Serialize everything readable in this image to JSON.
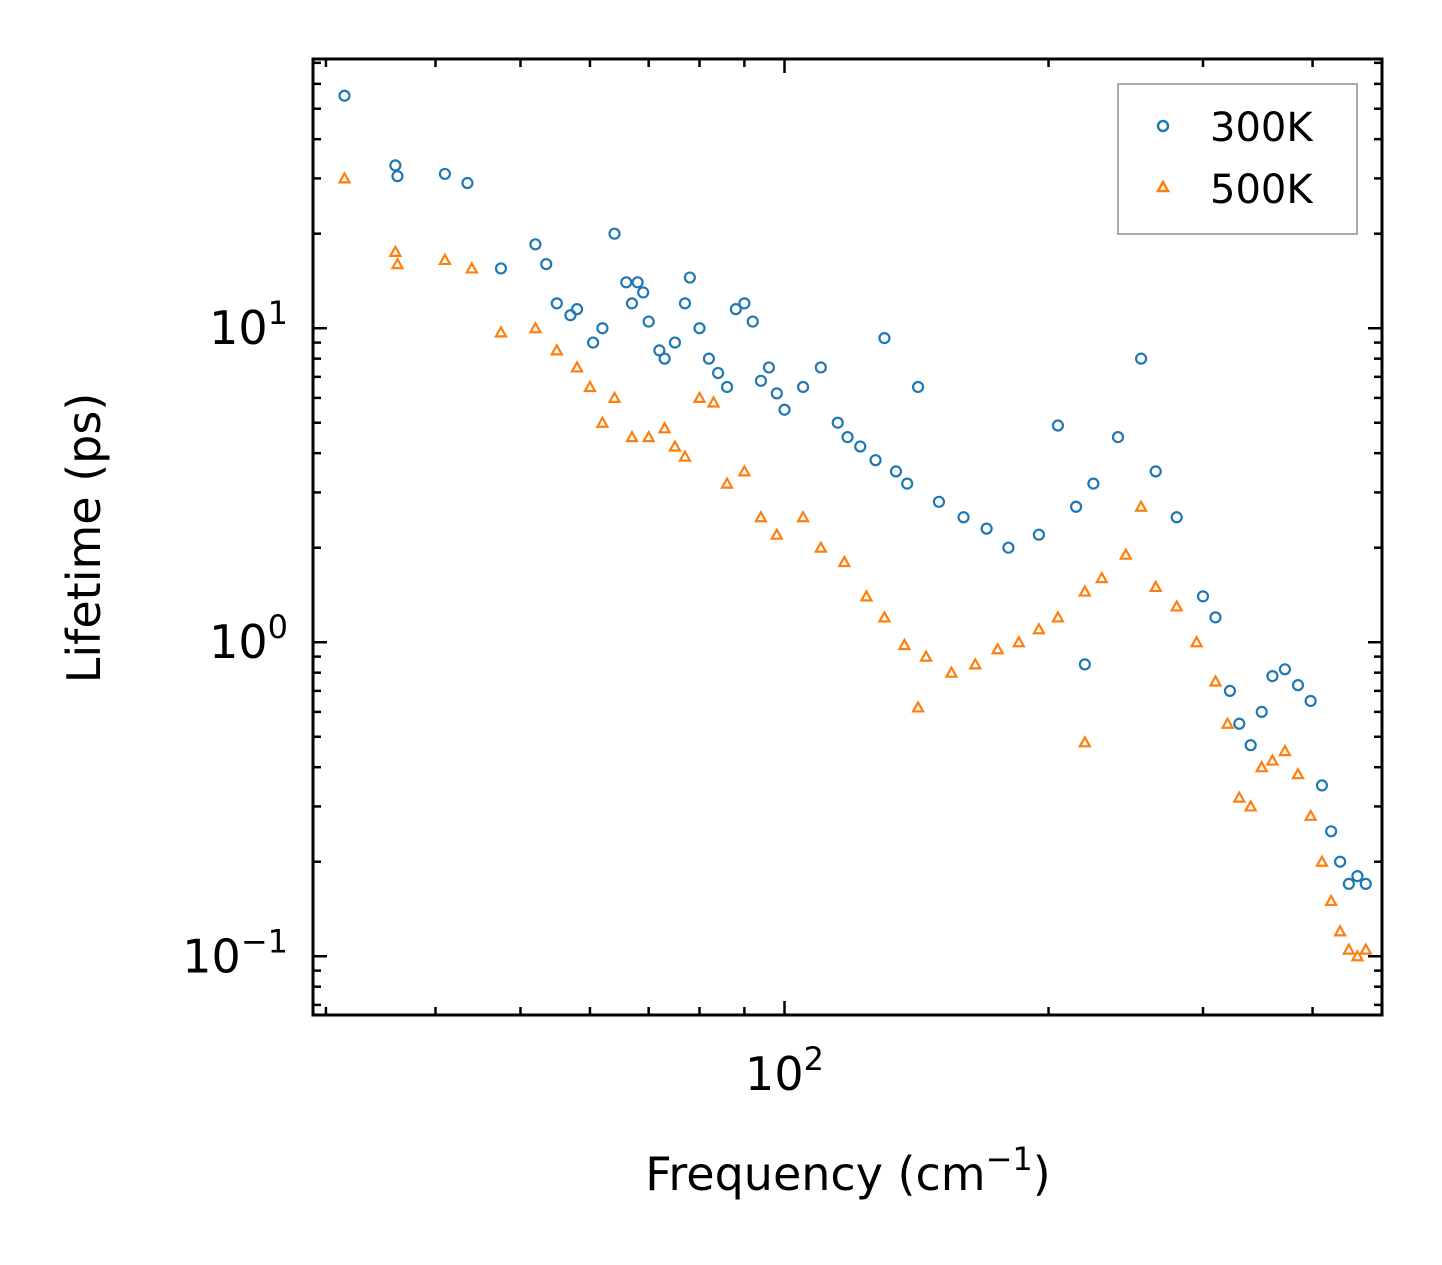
{
  "chart_data": {
    "type": "scatter",
    "xscale": "log",
    "yscale": "log",
    "xlabel": "Frequency (cm",
    "xlabel_exp": "−1",
    "xlabel_close": ")",
    "ylabel": "Lifetime (ps)",
    "xlim": [
      29,
      480
    ],
    "ylim": [
      0.065,
      72
    ],
    "x_ticks": [
      {
        "base": "10",
        "exp": "2",
        "value": 100
      }
    ],
    "y_ticks": [
      {
        "base": "10",
        "exp": "−1",
        "value": 0.1
      },
      {
        "base": "10",
        "exp": "0",
        "value": 1
      },
      {
        "base": "10",
        "exp": "1",
        "value": 10
      }
    ],
    "legend_position": "top-right",
    "series": [
      {
        "name": "300K",
        "marker": "circle",
        "color": "#1f77b4",
        "points": [
          [
            31.5,
            55
          ],
          [
            36,
            33
          ],
          [
            36.2,
            30.5
          ],
          [
            41,
            31
          ],
          [
            43.5,
            29
          ],
          [
            47.5,
            15.5
          ],
          [
            52,
            18.5
          ],
          [
            53.5,
            16
          ],
          [
            55,
            12
          ],
          [
            57,
            11
          ],
          [
            58,
            11.5
          ],
          [
            60.5,
            9
          ],
          [
            62,
            10
          ],
          [
            64,
            20
          ],
          [
            66,
            14
          ],
          [
            67,
            12
          ],
          [
            68,
            14
          ],
          [
            69,
            13
          ],
          [
            70,
            10.5
          ],
          [
            72,
            8.5
          ],
          [
            73,
            8
          ],
          [
            75,
            9
          ],
          [
            77,
            12
          ],
          [
            78,
            14.5
          ],
          [
            80,
            10
          ],
          [
            82,
            8
          ],
          [
            84,
            7.2
          ],
          [
            86,
            6.5
          ],
          [
            88,
            11.5
          ],
          [
            90,
            12
          ],
          [
            92,
            10.5
          ],
          [
            94,
            6.8
          ],
          [
            96,
            7.5
          ],
          [
            98,
            6.2
          ],
          [
            100,
            5.5
          ],
          [
            105,
            6.5
          ],
          [
            110,
            7.5
          ],
          [
            115,
            5
          ],
          [
            118,
            4.5
          ],
          [
            122,
            4.2
          ],
          [
            127,
            3.8
          ],
          [
            130,
            9.3
          ],
          [
            134,
            3.5
          ],
          [
            138,
            3.2
          ],
          [
            142,
            6.5
          ],
          [
            150,
            2.8
          ],
          [
            160,
            2.5
          ],
          [
            170,
            2.3
          ],
          [
            180,
            2.0
          ],
          [
            195,
            2.2
          ],
          [
            205,
            4.9
          ],
          [
            215,
            2.7
          ],
          [
            225,
            3.2
          ],
          [
            240,
            4.5
          ],
          [
            255,
            8
          ],
          [
            265,
            3.5
          ],
          [
            280,
            2.5
          ],
          [
            300,
            1.4
          ],
          [
            310,
            1.2
          ],
          [
            322,
            0.7
          ],
          [
            330,
            0.55
          ],
          [
            340,
            0.47
          ],
          [
            350,
            0.6
          ],
          [
            360,
            0.78
          ],
          [
            372,
            0.82
          ],
          [
            385,
            0.73
          ],
          [
            398,
            0.65
          ],
          [
            410,
            0.35
          ],
          [
            420,
            0.25
          ],
          [
            430,
            0.2
          ],
          [
            440,
            0.17
          ],
          [
            450,
            0.18
          ],
          [
            460,
            0.17
          ],
          [
            220,
            0.85
          ]
        ]
      },
      {
        "name": "500K",
        "marker": "triangle",
        "color": "#ff7f0e",
        "points": [
          [
            31.5,
            30
          ],
          [
            36,
            17.5
          ],
          [
            36.2,
            16
          ],
          [
            41,
            16.5
          ],
          [
            44,
            15.5
          ],
          [
            47.5,
            9.7
          ],
          [
            52,
            10
          ],
          [
            55,
            8.5
          ],
          [
            58,
            7.5
          ],
          [
            60,
            6.5
          ],
          [
            62,
            5
          ],
          [
            64,
            6
          ],
          [
            67,
            4.5
          ],
          [
            70,
            4.5
          ],
          [
            73,
            4.8
          ],
          [
            75,
            4.2
          ],
          [
            77,
            3.9
          ],
          [
            80,
            6
          ],
          [
            83,
            5.8
          ],
          [
            86,
            3.2
          ],
          [
            90,
            3.5
          ],
          [
            94,
            2.5
          ],
          [
            98,
            2.2
          ],
          [
            105,
            2.5
          ],
          [
            110,
            2.0
          ],
          [
            117,
            1.8
          ],
          [
            124,
            1.4
          ],
          [
            130,
            1.2
          ],
          [
            137,
            0.98
          ],
          [
            145,
            0.9
          ],
          [
            155,
            0.8
          ],
          [
            165,
            0.85
          ],
          [
            175,
            0.95
          ],
          [
            185,
            1.0
          ],
          [
            195,
            1.1
          ],
          [
            205,
            1.2
          ],
          [
            220,
            1.45
          ],
          [
            230,
            1.6
          ],
          [
            245,
            1.9
          ],
          [
            255,
            2.7
          ],
          [
            265,
            1.5
          ],
          [
            280,
            1.3
          ],
          [
            295,
            1.0
          ],
          [
            310,
            0.75
          ],
          [
            320,
            0.55
          ],
          [
            330,
            0.32
          ],
          [
            340,
            0.3
          ],
          [
            350,
            0.4
          ],
          [
            360,
            0.42
          ],
          [
            372,
            0.45
          ],
          [
            385,
            0.38
          ],
          [
            398,
            0.28
          ],
          [
            410,
            0.2
          ],
          [
            420,
            0.15
          ],
          [
            430,
            0.12
          ],
          [
            440,
            0.105
          ],
          [
            450,
            0.1
          ],
          [
            460,
            0.105
          ],
          [
            220,
            0.48
          ],
          [
            142,
            0.62
          ]
        ]
      }
    ]
  }
}
